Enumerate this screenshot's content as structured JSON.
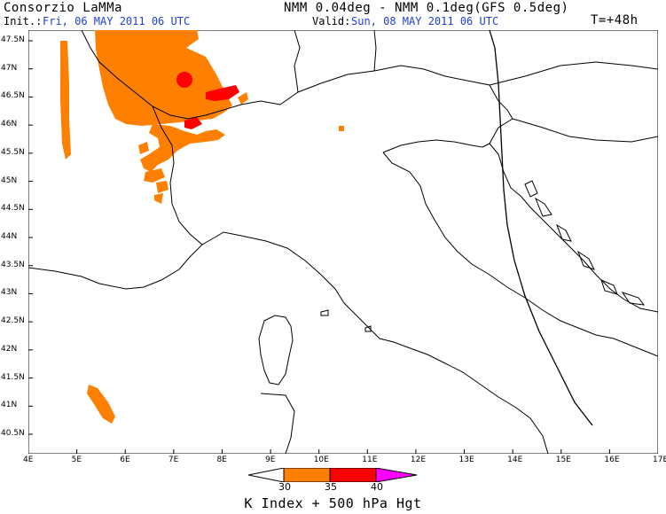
{
  "header": {
    "org": "Consorzio LaMMa",
    "model": "NMM 0.04deg - NMM 0.1deg(GFS 0.5deg)",
    "init_label": "Init.:",
    "init_value": "Fri, 06 MAY 2011  06 UTC",
    "valid_label": "Valid:",
    "valid_value": "Sun, 08 MAY 2011  06 UTC",
    "lead": "T=+48h"
  },
  "map": {
    "lat_labels": [
      "47.5N",
      "47N",
      "46.5N",
      "46N",
      "45.5N",
      "45N",
      "44.5N",
      "44N",
      "43.5N",
      "43N",
      "42.5N",
      "42N",
      "41.5N",
      "41N",
      "40.5N"
    ],
    "lon_labels": [
      "4E",
      "5E",
      "6E",
      "7E",
      "8E",
      "9E",
      "10E",
      "11E",
      "12E",
      "13E",
      "14E",
      "15E",
      "16E",
      "17E"
    ],
    "colors": {
      "k30": "#ff8000",
      "k35": "#ff0000",
      "k40": "#ff00ff",
      "coast": "#000000"
    }
  },
  "legend": {
    "labels": [
      "30",
      "35",
      "40"
    ],
    "colors": [
      "#ff8000",
      "#ff0000",
      "#ff00ff"
    ]
  },
  "title": "K Index + 500 hPa Hgt"
}
